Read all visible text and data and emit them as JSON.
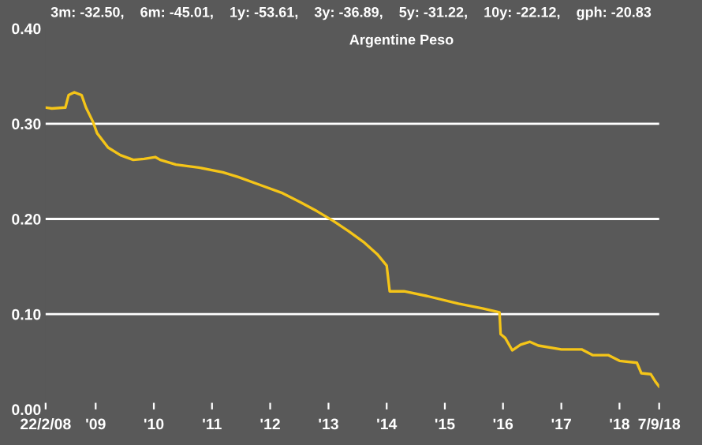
{
  "chart_data": {
    "type": "line",
    "title": "3m: -32.50,    6m: -45.01,    1y: -53.61,    3y: -36.89,    5y: -31.22,    10y: -22.12,    gph: -20.83",
    "subtitle": "Argentine Peso",
    "x": [
      "2008-02-22",
      "2008-04-01",
      "2008-06-25",
      "2008-07-15",
      "2008-08-20",
      "2008-10-05",
      "2008-11-01",
      "2008-12-15",
      "2009-01-10",
      "2009-03-20",
      "2009-06-05",
      "2009-08-25",
      "2009-11-01",
      "2010-01-10",
      "2010-02-10",
      "2010-05-20",
      "2010-10-10",
      "2011-03-10",
      "2011-06-15",
      "2011-11-10",
      "2012-03-20",
      "2012-07-15",
      "2012-10-22",
      "2013-01-30",
      "2013-05-08",
      "2013-08-15",
      "2013-11-03",
      "2014-01-01",
      "2014-01-20",
      "2014-04-20",
      "2014-09-12",
      "2015-03-28",
      "2015-08-25",
      "2015-12-10",
      "2015-12-17",
      "2016-01-15",
      "2016-02-28",
      "2016-04-20",
      "2016-06-18",
      "2016-08-10",
      "2017-01-01",
      "2017-05-08",
      "2017-07-16",
      "2017-10-22",
      "2018-01-01",
      "2018-04-20",
      "2018-05-18",
      "2018-07-16",
      "2018-08-15",
      "2018-09-07"
    ],
    "series": [
      {
        "color": "#f5c518",
        "values": [
          0.317,
          0.316,
          0.317,
          0.33,
          0.333,
          0.33,
          0.317,
          0.302,
          0.29,
          0.275,
          0.267,
          0.262,
          0.263,
          0.265,
          0.262,
          0.257,
          0.254,
          0.249,
          0.244,
          0.235,
          0.227,
          0.217,
          0.208,
          0.198,
          0.187,
          0.175,
          0.163,
          0.151,
          0.124,
          0.124,
          0.119,
          0.111,
          0.106,
          0.102,
          0.079,
          0.075,
          0.062,
          0.068,
          0.071,
          0.067,
          0.063,
          0.063,
          0.057,
          0.057,
          0.051,
          0.049,
          0.038,
          0.037,
          0.029,
          0.024
        ]
      }
    ],
    "xlim": [
      "2008-02-22",
      "2018-09-07"
    ],
    "xticks": [
      {
        "value": "2008-02-22",
        "label": "22/2/08"
      },
      {
        "value": "2009-01-01",
        "label": "'09"
      },
      {
        "value": "2010-01-01",
        "label": "'10"
      },
      {
        "value": "2011-01-01",
        "label": "'11"
      },
      {
        "value": "2012-01-01",
        "label": "'12"
      },
      {
        "value": "2013-01-01",
        "label": "'13"
      },
      {
        "value": "2014-01-01",
        "label": "'14"
      },
      {
        "value": "2015-01-01",
        "label": "'15"
      },
      {
        "value": "2016-01-01",
        "label": "'16"
      },
      {
        "value": "2017-01-01",
        "label": "'17"
      },
      {
        "value": "2018-01-01",
        "label": "'18"
      },
      {
        "value": "2018-09-07",
        "label": "7/9/18"
      }
    ],
    "ylim": [
      0,
      0.4
    ],
    "yticks": [
      {
        "value": 0,
        "label": "0.00"
      },
      {
        "value": 0.1,
        "label": "0.10"
      },
      {
        "value": 0.2,
        "label": "0.20"
      },
      {
        "value": 0.3,
        "label": "0.30"
      },
      {
        "value": 0.4,
        "label": "0.40"
      }
    ],
    "grid": "y",
    "marker": "none",
    "line_style": "solid"
  }
}
